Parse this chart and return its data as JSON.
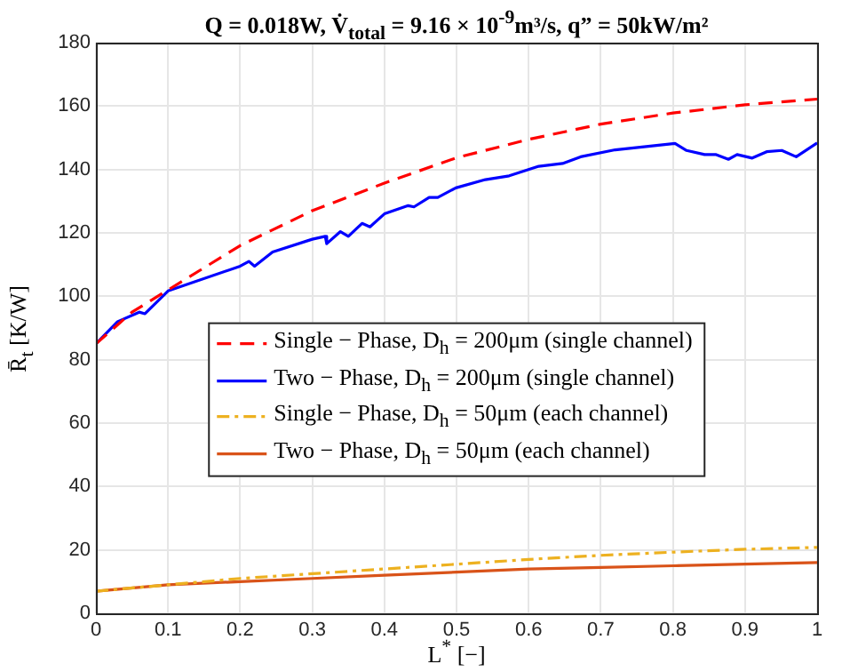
{
  "chart_data": {
    "type": "line",
    "title": "Q = 0.018W,  V̇$_{total}$ = 9.16 × 10$^{-9}$m³/s,  q” = 50kW/m²",
    "xlabel": "L$^{*}$ [−]",
    "ylabel": "R̄$_{t}$ [K/W]",
    "xlim": [
      0,
      1
    ],
    "ylim": [
      0,
      180
    ],
    "xticks": [
      0,
      0.1,
      0.2,
      0.3,
      0.4,
      0.5,
      0.6,
      0.7,
      0.8,
      0.9,
      1
    ],
    "yticks": [
      0,
      20,
      40,
      60,
      80,
      100,
      120,
      140,
      160,
      180
    ],
    "grid": true,
    "legend": "center",
    "marker": "none",
    "series": [
      {
        "name": "Single − Phase, D$_{h}$ = 200μm (single channel)",
        "color": "#ff0000",
        "line_style": "dashed",
        "x": [
          0,
          0.05,
          0.1,
          0.2,
          0.3,
          0.4,
          0.5,
          0.6,
          0.7,
          0.8,
          0.9,
          1
        ],
        "values": [
          85,
          95,
          102,
          116,
          127,
          135.7,
          143.7,
          149.5,
          154.3,
          157.8,
          160.4,
          162.2
        ]
      },
      {
        "name": "Two − Phase, D$_{h}$ = 200μm (single channel)",
        "color": "#0000ff",
        "line_style": "solid",
        "x": [
          0,
          0.03,
          0.06,
          0.068,
          0.1,
          0.2,
          0.212,
          0.22,
          0.245,
          0.3,
          0.318,
          0.32,
          0.339,
          0.35,
          0.369,
          0.38,
          0.4,
          0.433,
          0.441,
          0.462,
          0.474,
          0.499,
          0.54,
          0.573,
          0.614,
          0.647,
          0.672,
          0.72,
          0.803,
          0.819,
          0.844,
          0.86,
          0.877,
          0.889,
          0.91,
          0.93,
          0.951,
          0.971,
          1
        ],
        "values": [
          85,
          92,
          95,
          94.5,
          101.7,
          109.5,
          111,
          109.5,
          114,
          118,
          118.9,
          116.6,
          120.4,
          118.9,
          123,
          121.9,
          126,
          128.6,
          128.2,
          131.2,
          131.2,
          134.2,
          136.8,
          138,
          141,
          141.9,
          144,
          146.2,
          148.2,
          146,
          144.7,
          144.7,
          143.2,
          144.7,
          143.6,
          145.6,
          146,
          144,
          148.4
        ]
      },
      {
        "name": "Single − Phase, D$_{h}$ = 50μm (each channel)",
        "color": "#edb120",
        "line_style": "dashdot",
        "x": [
          0,
          0.1,
          0.2,
          0.3,
          0.4,
          0.5,
          0.6,
          0.7,
          0.8,
          0.9,
          1
        ],
        "values": [
          7,
          9,
          11,
          12.5,
          14,
          15.5,
          17,
          18.3,
          19.3,
          20.2,
          20.8
        ]
      },
      {
        "name": "Two − Phase, D$_{h}$ = 50μm (each channel)",
        "color": "#d95319",
        "line_style": "solid",
        "x": [
          0,
          0.1,
          0.2,
          0.3,
          0.4,
          0.5,
          0.6,
          0.7,
          0.8,
          0.9,
          1
        ],
        "values": [
          7,
          9,
          10,
          11,
          12,
          13,
          14,
          14.5,
          15,
          15.5,
          16
        ]
      }
    ]
  }
}
